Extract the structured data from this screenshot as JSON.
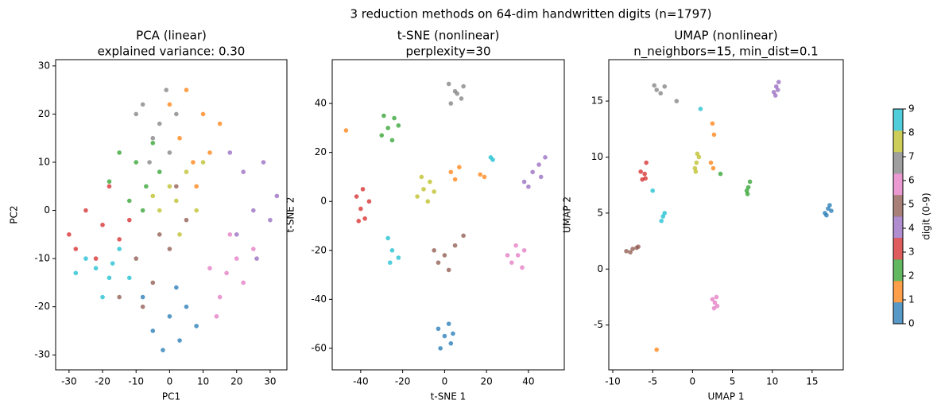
{
  "suptitle": "3 reduction methods on 64-dim handwritten digits (n=1797)",
  "colorbar": {
    "label": "digit (0-9)",
    "lim": [
      0,
      9
    ],
    "ticks": [
      0,
      1,
      2,
      3,
      4,
      5,
      6,
      7,
      8,
      9
    ],
    "colors": [
      "#1f77b4",
      "#ff7f0e",
      "#2ca02c",
      "#d62728",
      "#9467bd",
      "#8c564b",
      "#e377c2",
      "#7f7f7f",
      "#bcbd22",
      "#17becf"
    ]
  },
  "chart_data": [
    {
      "type": "scatter",
      "title": [
        "PCA (linear)",
        "explained variance: 0.30"
      ],
      "xlabel": "PC1",
      "ylabel": "PC2",
      "xlim": [
        -34,
        35
      ],
      "ylim": [
        -33.1,
        31.3
      ],
      "xticks": [
        -30,
        -20,
        -10,
        0,
        10,
        20,
        30
      ],
      "yticks": [
        -30,
        -20,
        -10,
        0,
        10,
        20,
        30
      ],
      "x": [
        0,
        -5,
        5,
        3,
        -8,
        8,
        -2,
        2,
        5,
        10,
        3,
        12,
        8,
        0,
        15,
        7,
        -10,
        -15,
        -7,
        -12,
        -5,
        -18,
        -3,
        -8,
        -20,
        -25,
        -15,
        -28,
        -18,
        -22,
        -12,
        -30,
        25,
        30,
        22,
        28,
        20,
        32,
        26,
        18,
        -10,
        -5,
        -15,
        0,
        5,
        -8,
        -3,
        2,
        17,
        15,
        20,
        22,
        12,
        18,
        14,
        25,
        -3,
        -8,
        0,
        -5,
        -10,
        2,
        -1,
        -6,
        0,
        5,
        -3,
        3,
        8,
        -5,
        10,
        2,
        -22,
        -18,
        -25,
        -15,
        -20,
        -28,
        -12,
        -17
      ],
      "y": [
        -22,
        -25,
        -20,
        -27,
        -18,
        -24,
        -29,
        -16,
        25,
        20,
        15,
        12,
        5,
        22,
        18,
        10,
        10,
        12,
        5,
        2,
        14,
        6,
        8,
        0,
        -3,
        0,
        -6,
        -8,
        5,
        -10,
        -2,
        -5,
        0,
        -2,
        8,
        10,
        -5,
        3,
        -10,
        12,
        -10,
        -15,
        -18,
        -8,
        -2,
        -20,
        -5,
        5,
        -13,
        -18,
        -10,
        -15,
        -12,
        -5,
        -22,
        -8,
        18,
        22,
        12,
        15,
        20,
        20,
        25,
        10,
        5,
        8,
        0,
        -5,
        0,
        3,
        10,
        2,
        -12,
        -14,
        -10,
        -8,
        -18,
        -13,
        -14,
        -11
      ],
      "c": [
        0,
        0,
        0,
        0,
        0,
        0,
        0,
        0,
        1,
        1,
        1,
        1,
        1,
        1,
        1,
        1,
        2,
        2,
        2,
        2,
        2,
        2,
        2,
        2,
        3,
        3,
        3,
        3,
        3,
        3,
        3,
        3,
        4,
        4,
        4,
        4,
        4,
        4,
        4,
        4,
        5,
        5,
        5,
        5,
        5,
        5,
        5,
        5,
        6,
        6,
        6,
        6,
        6,
        6,
        6,
        6,
        7,
        7,
        7,
        7,
        7,
        7,
        7,
        7,
        8,
        8,
        8,
        8,
        8,
        8,
        8,
        8,
        9,
        9,
        9,
        9,
        9,
        9,
        9,
        9
      ]
    },
    {
      "type": "scatter",
      "title": [
        "t-SNE (nonlinear)",
        "perplexity=30"
      ],
      "xlabel": "t-SNE 1",
      "ylabel": "t-SNE 2",
      "xlim": [
        -53.6,
        57.1
      ],
      "ylim": [
        -68.8,
        57.9
      ],
      "xticks": [
        -40,
        -20,
        0,
        20,
        40
      ],
      "yticks": [
        -60,
        -40,
        -20,
        0,
        20,
        40
      ],
      "x": [
        0,
        -3,
        3,
        2,
        -2,
        4,
        3,
        7,
        5,
        17,
        19,
        -47,
        -27,
        -24,
        -30,
        -25,
        -22,
        -29,
        -40,
        -38,
        -42,
        -36,
        -39,
        -41,
        45,
        42,
        48,
        38,
        40,
        46,
        0,
        -3,
        5,
        9,
        2,
        -5,
        35,
        32,
        38,
        34,
        37,
        30,
        5,
        2,
        8,
        3,
        9,
        6,
        -10,
        -7,
        -13,
        -8,
        -11,
        -5,
        -25,
        -27,
        -22,
        -26,
        22,
        23
      ],
      "y": [
        -55,
        -52,
        -58,
        -50,
        -60,
        -54,
        12,
        14,
        9,
        11,
        10,
        29,
        30,
        34,
        27,
        25,
        31,
        35,
        -3,
        -7,
        2,
        0,
        5,
        -8,
        15,
        12,
        18,
        8,
        6,
        10,
        -22,
        -25,
        -18,
        -14,
        -28,
        -20,
        -22,
        -25,
        -20,
        -18,
        -27,
        -22,
        45,
        48,
        42,
        40,
        47,
        44,
        5,
        8,
        2,
        0,
        10,
        4,
        -20,
        -15,
        -23,
        -25,
        18,
        17
      ],
      "c": [
        0,
        0,
        0,
        0,
        0,
        0,
        1,
        1,
        1,
        1,
        1,
        1,
        2,
        2,
        2,
        2,
        2,
        2,
        3,
        3,
        3,
        3,
        3,
        3,
        4,
        4,
        4,
        4,
        4,
        4,
        5,
        5,
        5,
        5,
        5,
        5,
        6,
        6,
        6,
        6,
        6,
        6,
        7,
        7,
        7,
        7,
        7,
        7,
        8,
        8,
        8,
        8,
        8,
        8,
        9,
        9,
        9,
        9,
        9,
        9
      ]
    },
    {
      "type": "scatter",
      "title": [
        "UMAP (nonlinear)",
        "n_neighbors=15, min_dist=0.1"
      ],
      "xlabel": "UMAP 1",
      "ylabel": "UMAP 2",
      "xlim": [
        -10.5,
        18.9
      ],
      "ylim": [
        -9.0,
        18.7
      ],
      "xticks": [
        -10,
        -5,
        0,
        5,
        10,
        15
      ],
      "yticks": [
        -5,
        0,
        5,
        10,
        15
      ],
      "x": [
        17,
        16.6,
        17.2,
        16.8,
        17.4,
        2.5,
        2.7,
        2.3,
        2.6,
        -4.5,
        7,
        6.8,
        7.2,
        6.9,
        3.5,
        -6,
        -6.3,
        -5.8,
        -6.5,
        -5.9,
        10.5,
        10.2,
        10.8,
        10.4,
        10.7,
        -7.5,
        -8.3,
        -6.8,
        -7.8,
        -7,
        2.8,
        2.5,
        3.1,
        2.7,
        3,
        -4.5,
        -3.5,
        -4,
        -4.8,
        -2,
        0.5,
        0.3,
        0.8,
        0.4,
        0.6,
        -3.7,
        -3.9,
        -3.5,
        1,
        -5
      ],
      "y": [
        5.4,
        5,
        5.7,
        4.8,
        5.2,
        13,
        12,
        9.5,
        9,
        -7.2,
        7.3,
        7,
        7.8,
        6.7,
        8.5,
        8.5,
        8,
        9.5,
        8.7,
        8.1,
        16.3,
        15.8,
        16.7,
        15.5,
        16,
        1.8,
        1.6,
        2,
        1.5,
        1.9,
        -3,
        -2.7,
        -3.3,
        -3.5,
        -2.5,
        16,
        16.3,
        15.7,
        16.4,
        15,
        9.5,
        9,
        10,
        8.7,
        10.3,
        4.7,
        4.3,
        5,
        14.3,
        7
      ],
      "c": [
        0,
        0,
        0,
        0,
        0,
        1,
        1,
        1,
        1,
        1,
        2,
        2,
        2,
        2,
        2,
        3,
        3,
        3,
        3,
        3,
        4,
        4,
        4,
        4,
        4,
        5,
        5,
        5,
        5,
        5,
        6,
        6,
        6,
        6,
        6,
        7,
        7,
        7,
        7,
        7,
        8,
        8,
        8,
        8,
        8,
        9,
        9,
        9,
        9,
        9
      ]
    }
  ]
}
